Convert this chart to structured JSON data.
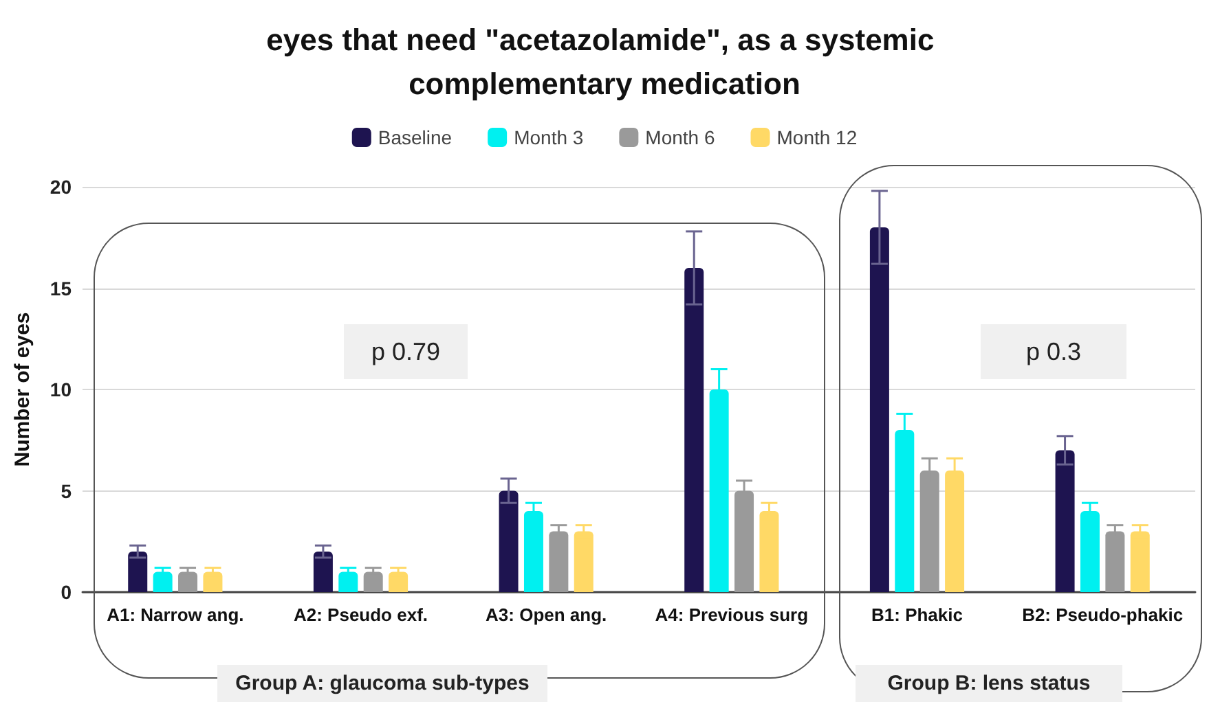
{
  "chart_data": {
    "type": "bar",
    "title": "eyes that need \"acetazolamide\", as a systemic complementary medication",
    "ylabel": "Number of eyes",
    "categories": [
      "A1: Narrow ang.",
      "A2: Pseudo exf.",
      "A3: Open ang.",
      "A4: Previous surg",
      "B1: Phakic",
      "B2: Pseudo-phakic"
    ],
    "series": [
      {
        "name": "Baseline",
        "color": "#1e1450",
        "values": [
          2,
          2,
          5,
          16,
          18,
          7
        ],
        "errors": [
          0.3,
          0.3,
          0.6,
          1.8,
          1.8,
          0.7
        ]
      },
      {
        "name": "Month 3",
        "color": "#00f0f0",
        "values": [
          1,
          1,
          4,
          10,
          8,
          4
        ],
        "errors": [
          0.2,
          0.2,
          0.4,
          1,
          0.8,
          0.4
        ]
      },
      {
        "name": "Month 6",
        "color": "#9a9a9a",
        "values": [
          1,
          1,
          3,
          5,
          6,
          3
        ],
        "errors": [
          0.2,
          0.2,
          0.3,
          0.5,
          0.6,
          0.3
        ]
      },
      {
        "name": "Month 12",
        "color": "#ffd966",
        "values": [
          1,
          1,
          3,
          4,
          6,
          3
        ],
        "errors": [
          0.2,
          0.2,
          0.3,
          0.4,
          0.6,
          0.3
        ]
      }
    ],
    "ylim": [
      0,
      20
    ],
    "yticks": [
      0,
      5,
      10,
      15,
      20
    ],
    "grid": "y",
    "legend": "top",
    "annotations": [
      "p 0.79",
      "p 0.3",
      "Group A: glaucoma sub-types",
      "Group B: lens status"
    ]
  }
}
